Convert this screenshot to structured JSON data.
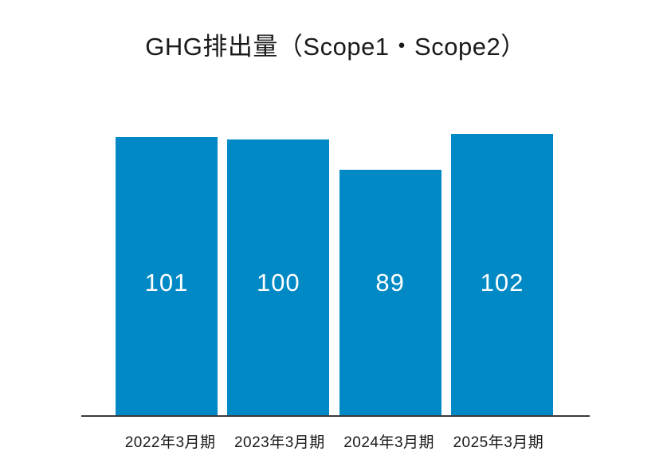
{
  "page": {
    "background_color": "#ffffff"
  },
  "chart_data": {
    "type": "bar",
    "title": "GHG排出量（Scope1・Scope2）",
    "categories": [
      "2022年3月期",
      "2023年3月期",
      "2024年3月期",
      "2025年3月期"
    ],
    "values": [
      101,
      100,
      89,
      102
    ],
    "xlabel": "",
    "ylabel": "",
    "ylim": [
      0,
      113
    ],
    "grid": false,
    "legend_position": "none",
    "y_axis_visible": false,
    "value_labels_inside_bars": true,
    "bar_color": "#0089c5",
    "value_label_color": "#ffffff",
    "axis_line_color": "#3a3a3a",
    "title_color": "#1a1a1a",
    "tick_label_color": "#1a1a1a"
  }
}
